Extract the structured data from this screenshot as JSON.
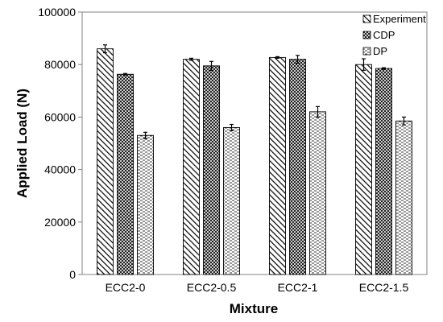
{
  "chart_data": {
    "type": "bar",
    "title": "",
    "xlabel": "Mixture",
    "ylabel": "Applied Load (N)",
    "ylim": [
      0,
      100000
    ],
    "yticks": [
      0,
      20000,
      40000,
      60000,
      80000,
      100000
    ],
    "categories": [
      "ECC2-0",
      "ECC2-0.5",
      "ECC2-1",
      "ECC2-1.5"
    ],
    "series": [
      {
        "name": "Experiment",
        "pattern": "diagonal-hatch",
        "values": [
          86000,
          82000,
          82700,
          80000
        ],
        "errors": [
          1500,
          400,
          300,
          2200
        ]
      },
      {
        "name": "CDP",
        "pattern": "crosshatch",
        "values": [
          76300,
          79500,
          82000,
          78500
        ],
        "errors": [
          300,
          1700,
          1500,
          300
        ]
      },
      {
        "name": "DP",
        "pattern": "dashed-horizontal",
        "values": [
          53000,
          56000,
          62000,
          58500
        ],
        "errors": [
          1200,
          1200,
          2000,
          1500
        ]
      }
    ],
    "legend_position": "top-right",
    "grid": false,
    "colors": {
      "bar_stroke": "#000000",
      "axis": "#808080",
      "background": "#ffffff"
    }
  }
}
